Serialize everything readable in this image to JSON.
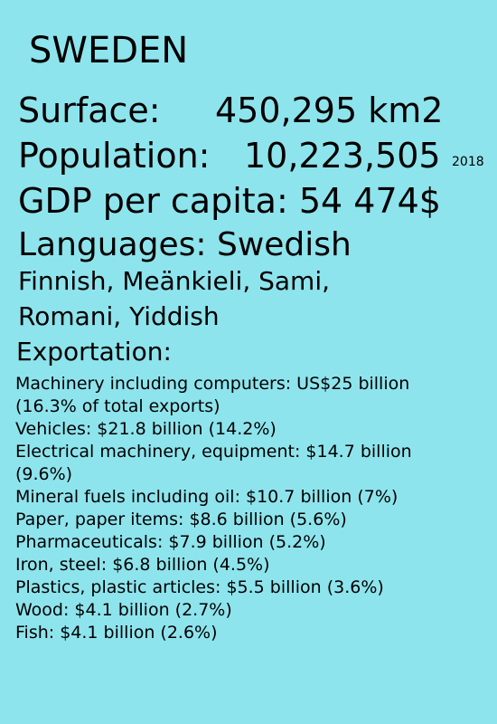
{
  "title": "SWEDEN",
  "surface": {
    "label": "Surface:",
    "value": "450,295 km2"
  },
  "population": {
    "label": "Population:",
    "value": "10,223,505",
    "year": "2018"
  },
  "gdp": "GDP per capita: 54 474$",
  "languages": {
    "line1": "Languages: Swedish",
    "line2": "Finnish, Meänkieli, Sami,",
    "line3": "Romani, Yiddish"
  },
  "exportation": {
    "heading": "Exportation:",
    "lines": [
      "Machinery including computers: US$25 billion",
      "(16.3% of total exports)",
      "Vehicles: $21.8 billion (14.2%)",
      "Electrical machinery, equipment: $14.7 billion",
      "(9.6%)",
      "Mineral fuels including oil: $10.7 billion (7%)",
      "Paper, paper items: $8.6 billion (5.6%)",
      "Pharmaceuticals: $7.9 billion (5.2%)",
      "Iron, steel: $6.8 billion (4.5%)",
      "Plastics, plastic articles: $5.5 billion (3.6%)",
      "Wood: $4.1 billion (2.7%)",
      "Fish: $4.1 billion (2.6%)"
    ]
  }
}
